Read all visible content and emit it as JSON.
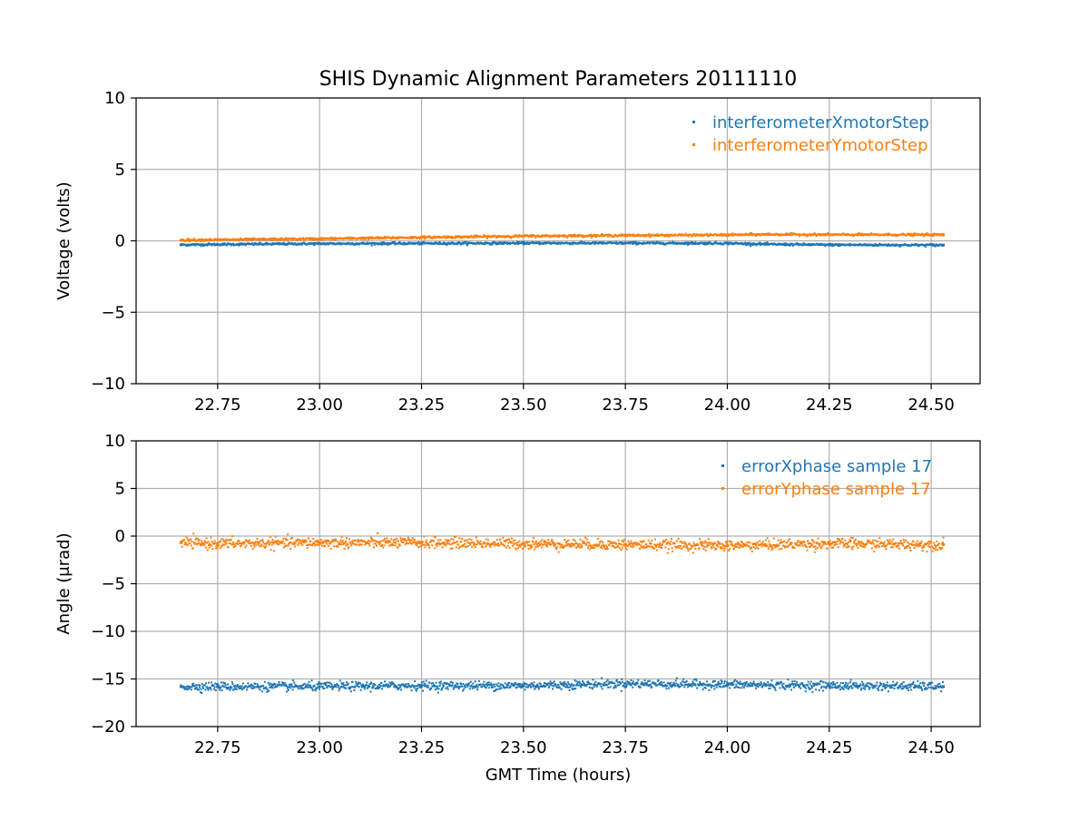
{
  "figure": {
    "title": "SHIS Dynamic Alignment Parameters 20111110"
  },
  "chart_data": [
    {
      "type": "scatter",
      "title": "SHIS Dynamic Alignment Parameters 20111110",
      "xlabel": "",
      "ylabel": "Voltage (volts)",
      "xlim": [
        22.55,
        24.62
      ],
      "ylim": [
        -10,
        10
      ],
      "xticks": [
        22.75,
        23.0,
        23.25,
        23.5,
        23.75,
        24.0,
        24.25,
        24.5
      ],
      "xtick_labels": [
        "22.75",
        "23.00",
        "23.25",
        "23.50",
        "23.75",
        "24.00",
        "24.25",
        "24.50"
      ],
      "yticks": [
        -10,
        -5,
        0,
        5,
        10
      ],
      "ytick_labels": [
        "−10",
        "−5",
        "0",
        "5",
        "10"
      ],
      "grid": true,
      "legend_position": "top-right",
      "series": [
        {
          "name": "interferometerXmotorStep",
          "color": "#1f77b4",
          "x": [
            22.66,
            22.75,
            23.0,
            23.25,
            23.5,
            23.75,
            24.0,
            24.1,
            24.25,
            24.53
          ],
          "y": [
            -0.28,
            -0.25,
            -0.2,
            -0.18,
            -0.16,
            -0.16,
            -0.17,
            -0.24,
            -0.28,
            -0.3
          ],
          "band": 0.08
        },
        {
          "name": "interferometerYmotorStep",
          "color": "#ff7f0e",
          "x": [
            22.66,
            22.75,
            23.0,
            23.25,
            23.5,
            23.75,
            24.0,
            24.1,
            24.25,
            24.53
          ],
          "y": [
            0.05,
            0.07,
            0.14,
            0.24,
            0.33,
            0.38,
            0.41,
            0.45,
            0.43,
            0.42
          ],
          "band": 0.08
        }
      ]
    },
    {
      "type": "scatter",
      "title": "",
      "xlabel": "GMT Time (hours)",
      "ylabel": "Angle (μrad)",
      "xlim": [
        22.55,
        24.62
      ],
      "ylim": [
        -20,
        10
      ],
      "xticks": [
        22.75,
        23.0,
        23.25,
        23.5,
        23.75,
        24.0,
        24.25,
        24.5
      ],
      "xtick_labels": [
        "22.75",
        "23.00",
        "23.25",
        "23.50",
        "23.75",
        "24.00",
        "24.25",
        "24.50"
      ],
      "yticks": [
        -20,
        -15,
        -10,
        -5,
        0,
        5,
        10
      ],
      "ytick_labels": [
        "−20",
        "−15",
        "−10",
        "−5",
        "0",
        "5",
        "10"
      ],
      "grid": true,
      "legend_position": "top-right",
      "series": [
        {
          "name": "errorXphase sample 17",
          "color": "#1f77b4",
          "x": [
            22.66,
            22.75,
            23.0,
            23.25,
            23.5,
            23.75,
            24.0,
            24.25,
            24.53
          ],
          "y": [
            -15.8,
            -15.8,
            -15.8,
            -15.7,
            -15.7,
            -15.5,
            -15.6,
            -15.7,
            -15.8
          ],
          "band": 0.45
        },
        {
          "name": "errorYphase sample 17",
          "color": "#ff7f0e",
          "x": [
            22.66,
            22.75,
            23.0,
            23.25,
            23.5,
            23.75,
            24.0,
            24.25,
            24.53
          ],
          "y": [
            -0.7,
            -0.8,
            -0.7,
            -0.7,
            -0.8,
            -0.9,
            -1.0,
            -0.8,
            -0.9
          ],
          "band": 0.55
        }
      ]
    }
  ]
}
